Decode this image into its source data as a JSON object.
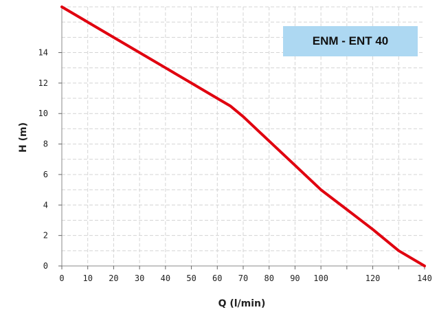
{
  "chart_data": {
    "type": "line",
    "title": "",
    "xlabel": "Q (l/min)",
    "ylabel": "H (m)",
    "xlim": [
      0,
      140
    ],
    "ylim": [
      0,
      17
    ],
    "x_ticks": [
      0,
      10,
      20,
      30,
      40,
      50,
      60,
      70,
      80,
      90,
      100,
      120,
      140
    ],
    "x_tick_labels": [
      "0",
      "10",
      "20",
      "30",
      "40",
      "50",
      "60",
      "70",
      "80",
      "90",
      "100",
      "120",
      "140"
    ],
    "x_extra_tick_marks": [
      110,
      130
    ],
    "y_ticks": [
      0,
      2,
      4,
      6,
      8,
      10,
      12,
      14
    ],
    "y_tick_labels": [
      "0",
      "2",
      "4",
      "6",
      "8",
      "10",
      "12",
      "14"
    ],
    "grid": true,
    "legend": {
      "label": "ENM - ENT 40",
      "placement": "top-right",
      "background": "#add8f2"
    },
    "series": [
      {
        "name": "ENM - ENT 40",
        "color": "#e0000f",
        "x": [
          0,
          10,
          20,
          30,
          40,
          50,
          60,
          65,
          70,
          80,
          90,
          100,
          110,
          120,
          130,
          140
        ],
        "y": [
          17,
          16,
          15,
          14,
          13,
          12,
          11,
          10.5,
          9.8,
          8.2,
          6.6,
          5.0,
          3.7,
          2.4,
          1.0,
          0
        ]
      }
    ]
  }
}
